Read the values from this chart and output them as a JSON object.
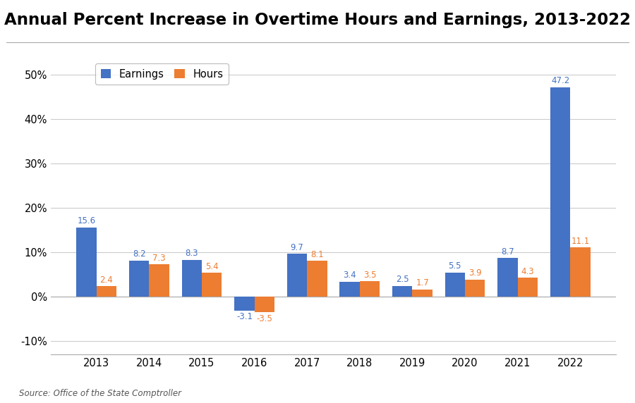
{
  "title": "Annual Percent Increase in Overtime Hours and Earnings, 2013-2022",
  "years": [
    2013,
    2014,
    2015,
    2016,
    2017,
    2018,
    2019,
    2020,
    2021,
    2022
  ],
  "earnings": [
    15.6,
    8.2,
    8.3,
    -3.1,
    9.7,
    3.4,
    2.5,
    5.5,
    8.7,
    47.2
  ],
  "hours": [
    2.4,
    7.3,
    5.4,
    -3.5,
    8.1,
    3.5,
    1.7,
    3.9,
    4.3,
    11.1
  ],
  "earnings_color": "#4472C4",
  "hours_color": "#ED7D31",
  "ylim": [
    -13,
    55
  ],
  "yticks": [
    -10,
    0,
    10,
    20,
    30,
    40,
    50
  ],
  "bar_width": 0.38,
  "source_text": "Source: Office of the State Comptroller",
  "legend_labels": [
    "Earnings",
    "Hours"
  ],
  "background_color": "#FFFFFF",
  "grid_color": "#CCCCCC",
  "label_fontsize": 8.5,
  "title_fontsize": 16.5
}
